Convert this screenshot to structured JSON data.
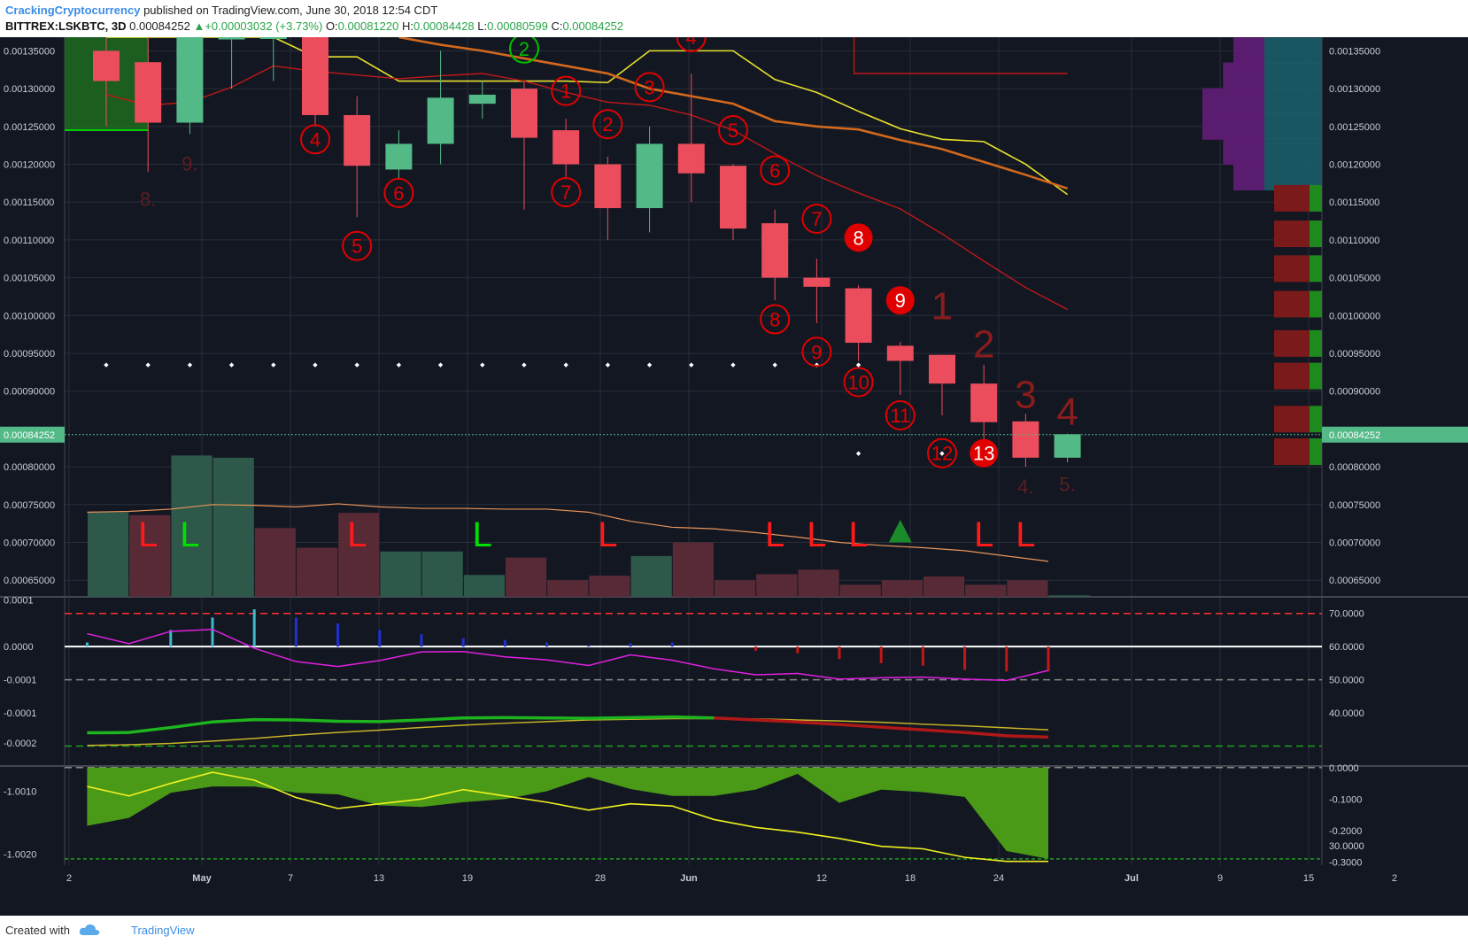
{
  "header": {
    "author": "CrackingCryptocurrency",
    "published_text": "published on TradingView.com, June 30, 2018 12:54 CDT",
    "symbol": "BITTREX:LSKBTC, 3D",
    "last": "0.00084252",
    "change": "+0.00003032 (+3.73%)",
    "ohlc_o_label": "O:",
    "ohlc_o": "0.00081220",
    "ohlc_h_label": "H:",
    "ohlc_h": "0.00084428",
    "ohlc_l_label": "L:",
    "ohlc_l": "0.00080599",
    "ohlc_c_label": "C:",
    "ohlc_c": "0.00084252"
  },
  "footer": {
    "created_with": "Created with",
    "brand": "TradingView"
  },
  "colors": {
    "background": "#131722",
    "up": "#53b987",
    "down": "#eb4d5c",
    "grid": "#2a2e39",
    "red_marker": "#e00000",
    "green_marker": "#00c000",
    "axis_text": "#c8ccd4"
  },
  "chart_data": [
    {
      "type": "candlestick",
      "panel": "price",
      "x_tick_labels": [
        "2",
        "May",
        "7",
        "13",
        "19",
        "28",
        "Jun",
        "12",
        "18",
        "24",
        "Jul",
        "9",
        "15",
        "2"
      ],
      "y_tick_labels": [
        "0.00135000",
        "0.00130000",
        "0.00125000",
        "0.00120000",
        "0.00115000",
        "0.00110000",
        "0.00105000",
        "0.00100000",
        "0.00095000",
        "0.00090000",
        "0.00080000",
        "0.00075000",
        "0.00070000",
        "0.00065000"
      ],
      "ylim": [
        0.000628,
        0.001368
      ],
      "last_price_label": "0.00084252",
      "candles": [
        {
          "o": 0.00135,
          "h": 0.001368,
          "l": 0.00125,
          "c": 0.00131
        },
        {
          "o": 0.001335,
          "h": 0.001368,
          "l": 0.00119,
          "c": 0.001255
        },
        {
          "o": 0.001255,
          "h": 0.001368,
          "l": 0.00124,
          "c": 0.001368
        },
        {
          "o": 0.001365,
          "h": 0.001368,
          "l": 0.0013,
          "c": 0.001368
        },
        {
          "o": 0.001368,
          "h": 0.001368,
          "l": 0.00131,
          "c": 0.001368
        },
        {
          "o": 0.001368,
          "h": 0.001368,
          "l": 0.00125,
          "c": 0.001265
        },
        {
          "o": 0.001265,
          "h": 0.00129,
          "l": 0.00113,
          "c": 0.001198
        },
        {
          "o": 0.001193,
          "h": 0.001245,
          "l": 0.00118,
          "c": 0.001227
        },
        {
          "o": 0.001227,
          "h": 0.00135,
          "l": 0.0012,
          "c": 0.001288
        },
        {
          "o": 0.00128,
          "h": 0.00131,
          "l": 0.00126,
          "c": 0.001292
        },
        {
          "o": 0.0013,
          "h": 0.00131,
          "l": 0.00114,
          "c": 0.001235
        },
        {
          "o": 0.001245,
          "h": 0.00126,
          "l": 0.00118,
          "c": 0.0012
        },
        {
          "o": 0.0012,
          "h": 0.00121,
          "l": 0.0011,
          "c": 0.001142
        },
        {
          "o": 0.001142,
          "h": 0.00125,
          "l": 0.00111,
          "c": 0.001227
        },
        {
          "o": 0.001227,
          "h": 0.00132,
          "l": 0.00115,
          "c": 0.001188
        },
        {
          "o": 0.001198,
          "h": 0.0012,
          "l": 0.0011,
          "c": 0.001115
        },
        {
          "o": 0.001122,
          "h": 0.00114,
          "l": 0.00102,
          "c": 0.00105
        },
        {
          "o": 0.00105,
          "h": 0.001075,
          "l": 0.00099,
          "c": 0.001038
        },
        {
          "o": 0.001036,
          "h": 0.00104,
          "l": 0.00094,
          "c": 0.000964
        },
        {
          "o": 0.00096,
          "h": 0.000965,
          "l": 0.000895,
          "c": 0.00094
        },
        {
          "o": 0.000948,
          "h": 0.000948,
          "l": 0.000868,
          "c": 0.00091
        },
        {
          "o": 0.00091,
          "h": 0.000935,
          "l": 0.00083,
          "c": 0.000859
        },
        {
          "o": 0.00086,
          "h": 0.00087,
          "l": 0.0008,
          "c": 0.000812
        },
        {
          "o": 0.000812,
          "h": 0.000844,
          "l": 0.000806,
          "c": 0.000843
        }
      ],
      "ma_red": [
        0.001292,
        0.001278,
        0.001282,
        0.001302,
        0.00133,
        0.001323,
        0.001318,
        0.001313,
        0.001317,
        0.00132,
        0.00131,
        0.001295,
        0.001282,
        0.001278,
        0.001265,
        0.001245,
        0.001214,
        0.001185,
        0.001162,
        0.001141,
        0.001108,
        0.001072,
        0.001037,
        0.001008
      ],
      "ma_yellow": [
        0.001368,
        0.001368,
        0.001368,
        0.001368,
        0.001368,
        0.001342,
        0.001342,
        0.00131,
        0.00131,
        0.00131,
        0.00131,
        0.00131,
        0.001308,
        0.00135,
        0.00135,
        0.00135,
        0.001312,
        0.001295,
        0.00127,
        0.001247,
        0.001233,
        0.00123,
        0.0012,
        0.00116
      ],
      "ma_orange": [
        null,
        null,
        null,
        null,
        null,
        null,
        null,
        0.001368,
        0.001358,
        0.00135,
        0.00134,
        0.00133,
        0.00132,
        0.0013,
        0.00129,
        0.00128,
        0.001257,
        0.00125,
        0.001246,
        0.001232,
        0.00122,
        0.001203,
        0.001186,
        0.001168
      ],
      "support_dots_price": 0.000937,
      "td_counts_red": [
        {
          "i": 11,
          "label": "1",
          "price": 0.001297
        },
        {
          "i": 12,
          "label": "2",
          "price": 0.001253
        },
        {
          "i": 13,
          "label": "3",
          "price": 0.001302
        },
        {
          "i": 14,
          "label": "4",
          "price": 0.001368
        },
        {
          "i": 15,
          "label": "5",
          "price": 0.001245
        },
        {
          "i": 16,
          "label": "6",
          "price": 0.001192
        },
        {
          "i": 17,
          "label": "7",
          "price": 0.001128
        },
        {
          "i": 18,
          "label": "8",
          "price": 0.001103,
          "filled": true
        },
        {
          "i": 19,
          "label": "9",
          "price": 0.00102,
          "filled": true
        },
        {
          "i": 5,
          "label": "4",
          "price": 0.001233
        },
        {
          "i": 6,
          "label": "5",
          "price": 0.001092
        },
        {
          "i": 7,
          "label": "6",
          "price": 0.001162
        },
        {
          "i": 11,
          "label": "7",
          "price": 0.001163
        },
        {
          "i": 16,
          "label": "8",
          "price": 0.000995
        },
        {
          "i": 17,
          "label": "9",
          "price": 0.000952
        },
        {
          "i": 18,
          "label": "10",
          "price": 0.000912
        },
        {
          "i": 19,
          "label": "11",
          "price": 0.000868
        },
        {
          "i": 20,
          "label": "12",
          "price": 0.000818
        },
        {
          "i": 21,
          "label": "13",
          "price": 0.000818,
          "filled": true
        }
      ],
      "td_counts_green": [
        {
          "i": 10,
          "label": "2",
          "price": 0.001353
        }
      ],
      "setup_numbers_big": [
        {
          "i": 20,
          "label": "1",
          "price": 0.000995
        },
        {
          "i": 21,
          "label": "2",
          "price": 0.000945
        },
        {
          "i": 22,
          "label": "3",
          "price": 0.000878
        },
        {
          "i": 23,
          "label": "4",
          "price": 0.000855
        }
      ],
      "small_labels": [
        {
          "i": 1,
          "label": "8.",
          "price": 0.001145
        },
        {
          "i": 2,
          "label": "9.",
          "price": 0.001192
        },
        {
          "i": 22,
          "label": "4.",
          "price": 0.000765
        },
        {
          "i": 23,
          "label": "5.",
          "price": 0.000768
        }
      ],
      "volume_y_range": [
        0.000628,
        0.00082
      ],
      "volume": [
        {
          "v": 0.00074,
          "up": true
        },
        {
          "v": 0.000736,
          "up": false
        },
        {
          "v": 0.000815,
          "up": true
        },
        {
          "v": 0.000812,
          "up": true
        },
        {
          "v": 0.000719,
          "up": false
        },
        {
          "v": 0.000693,
          "up": false
        },
        {
          "v": 0.000739,
          "up": false
        },
        {
          "v": 0.000688,
          "up": true
        },
        {
          "v": 0.000688,
          "up": true
        },
        {
          "v": 0.000657,
          "up": true
        },
        {
          "v": 0.00068,
          "up": false
        },
        {
          "v": 0.00065,
          "up": false
        },
        {
          "v": 0.000656,
          "up": false
        },
        {
          "v": 0.000682,
          "up": true
        },
        {
          "v": 0.0007,
          "up": false
        },
        {
          "v": 0.00065,
          "up": false
        },
        {
          "v": 0.000658,
          "up": false
        },
        {
          "v": 0.000664,
          "up": false
        },
        {
          "v": 0.000644,
          "up": false
        },
        {
          "v": 0.00065,
          "up": false
        },
        {
          "v": 0.000655,
          "up": false
        },
        {
          "v": 0.000644,
          "up": false
        },
        {
          "v": 0.00065,
          "up": false
        },
        {
          "v": 0.00063,
          "up": true
        }
      ],
      "volume_ma": [
        0.00074,
        0.000741,
        0.000744,
        0.00075,
        0.000749,
        0.000747,
        0.000751,
        0.000747,
        0.000745,
        0.000745,
        0.000744,
        0.000744,
        0.00074,
        0.000728,
        0.00072,
        0.000718,
        0.000713,
        0.000707,
        0.0007,
        0.000696,
        0.000693,
        0.000689,
        0.000682,
        0.000675
      ],
      "L_markers": [
        {
          "i": 1,
          "color": "red"
        },
        {
          "i": 2,
          "color": "green"
        },
        {
          "i": 6,
          "color": "red"
        },
        {
          "i": 9,
          "color": "green"
        },
        {
          "i": 12,
          "color": "red"
        },
        {
          "i": 16,
          "color": "red"
        },
        {
          "i": 17,
          "color": "red"
        },
        {
          "i": 18,
          "color": "red"
        },
        {
          "i": 21,
          "color": "red"
        },
        {
          "i": 22,
          "color": "red"
        }
      ],
      "volume_profile": [
        {
          "price": 0.00135,
          "a": 3e-06,
          "b": 3e-06
        },
        {
          "price": 0.001317,
          "a": 1e-06,
          "b": 4e-06
        },
        {
          "price": 0.001283,
          "a": 1e-06,
          "b": 6e-06
        },
        {
          "price": 0.00125,
          "a": 1e-06,
          "b": 6e-06
        },
        {
          "price": 0.001217,
          "a": 1e-06,
          "b": 4e-06
        },
        {
          "price": 0.001183,
          "a": 1e-06,
          "b": 3e-06
        }
      ]
    },
    {
      "type": "line",
      "panel": "oscillator",
      "left_tick_labels": [
        "0.0001",
        "0.0000",
        "-0.0001",
        "-0.0001",
        "-0.0002"
      ],
      "right_tick_labels": [
        "70.0000",
        "60.0000",
        "50.0000",
        "40.0000",
        "30.0000"
      ],
      "ylim": [
        24,
        75
      ],
      "levels": [
        70,
        60,
        50,
        30
      ],
      "magenta": [
        63.9,
        60.9,
        64.6,
        65.2,
        59.5,
        55.5,
        54.0,
        55.8,
        58.4,
        58.5,
        56.9,
        56.0,
        54.3,
        57.5,
        55.9,
        53.3,
        51.5,
        51.9,
        50.2,
        50.6,
        50.8,
        50.2,
        49.8,
        52.8
      ],
      "green_line": [
        34.0,
        34.1,
        35.6,
        37.3,
        38.0,
        37.9,
        37.5,
        37.4,
        37.9,
        38.5,
        38.6,
        38.5,
        38.4,
        38.6,
        38.8,
        38.5,
        null,
        null,
        null,
        null,
        null,
        null,
        null,
        null
      ],
      "red_line": [
        null,
        null,
        null,
        null,
        null,
        null,
        null,
        null,
        null,
        null,
        null,
        null,
        null,
        null,
        null,
        38.5,
        37.9,
        37.3,
        36.5,
        35.7,
        34.9,
        34.1,
        33.1,
        32.7
      ],
      "yellow_line": [
        30.2,
        30.4,
        30.8,
        31.5,
        32.3,
        33.3,
        34.1,
        34.8,
        35.6,
        36.3,
        36.9,
        37.4,
        37.9,
        38.1,
        38.3,
        38.3,
        38.2,
        37.9,
        37.6,
        37.2,
        36.6,
        36.1,
        35.5,
        34.9
      ],
      "histogram": [
        0.5,
        0.0,
        2.0,
        3.5,
        4.5,
        3.5,
        2.8,
        2.0,
        1.5,
        1.0,
        0.8,
        0.5,
        0.2,
        0.4,
        0.5,
        0.0,
        -0.5,
        -0.8,
        -1.5,
        -2.0,
        -2.3,
        -2.8,
        -3.0,
        -3.0
      ]
    },
    {
      "type": "area",
      "panel": "bottom",
      "left_tick_labels": [
        "-1.0010",
        "-1.0020"
      ],
      "right_tick_labels": [
        "0.0000",
        "-0.1000",
        "-0.2000",
        "-0.3000"
      ],
      "ylim": [
        -0.31,
        0.005
      ],
      "area_bottom": [
        -0.185,
        -0.16,
        -0.08,
        -0.06,
        -0.06,
        -0.08,
        -0.085,
        -0.12,
        -0.125,
        -0.11,
        -0.1,
        -0.075,
        -0.03,
        -0.068,
        -0.09,
        -0.09,
        -0.07,
        -0.02,
        -0.112,
        -0.07,
        -0.078,
        -0.093,
        -0.265,
        -0.29
      ],
      "yellow": [
        -0.06,
        -0.09,
        -0.05,
        -0.015,
        -0.04,
        -0.095,
        -0.13,
        -0.115,
        -0.1,
        -0.07,
        -0.09,
        -0.11,
        -0.135,
        -0.115,
        -0.122,
        -0.165,
        -0.19,
        -0.205,
        -0.225,
        -0.25,
        -0.258,
        -0.285,
        -0.298,
        -0.298
      ]
    }
  ]
}
